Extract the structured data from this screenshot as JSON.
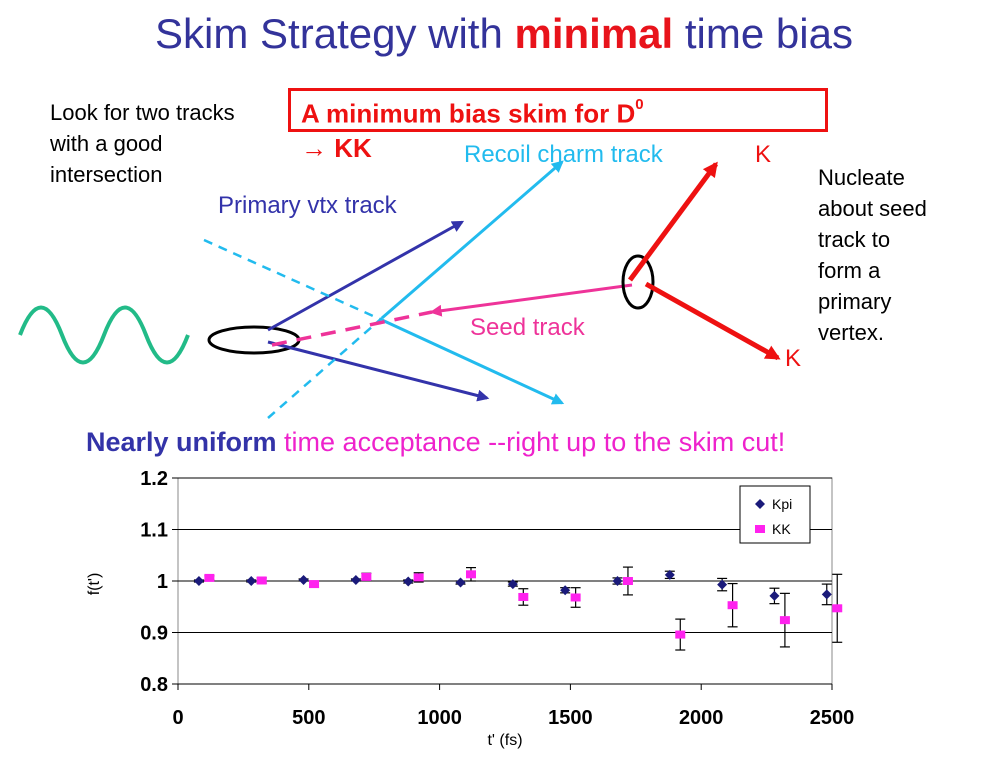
{
  "title": {
    "part1": "Skim Strategy with ",
    "highlight": "minimal",
    "part2": " time bias"
  },
  "box": {
    "line1": "A minimum bias skim for D",
    "sup": "0",
    "line2": "→ KK"
  },
  "left_note": "Look for two tracks with a good intersection",
  "right_note": "Nucleate about seed track to form a primary vertex.",
  "labels": {
    "primary": "Primary vtx track",
    "recoil": "Recoil charm track",
    "seed": "Seed track",
    "k_top": "K",
    "k_bottom": "K"
  },
  "uniform": {
    "bold": "Nearly uniform",
    "rest": " time acceptance --right up to the skim cut!"
  },
  "colors": {
    "title": "#33339a",
    "accent_red": "#ee1111",
    "magenta": "#ee22cc",
    "primary": "#3333aa",
    "recoil": "#22bbee",
    "seed": "#ee3399",
    "wave": "#22bb88",
    "kpi": "#1a1a7a",
    "kk": "#ff22ee"
  },
  "chart_data": {
    "type": "scatter",
    "xlabel": "t' (fs)",
    "ylabel": "f(t')",
    "xlim": [
      0,
      2500
    ],
    "ylim": [
      0.8,
      1.2
    ],
    "xticks": [
      "0",
      "500",
      "1000",
      "1500",
      "2000",
      "2500"
    ],
    "yticks": [
      "0.8",
      "0.9",
      "1",
      "1.1",
      "1.2"
    ],
    "grid": "horizontal",
    "legend_position": "top-right",
    "series": [
      {
        "name": "Kpi",
        "marker": "diamond",
        "x": [
          80,
          280,
          480,
          680,
          880,
          1080,
          1280,
          1480,
          1680,
          1880,
          2080,
          2280,
          2480
        ],
        "y": [
          1.0,
          1.0,
          1.002,
          1.002,
          0.999,
          0.997,
          0.994,
          0.982,
          1.0,
          1.012,
          0.993,
          0.971,
          0.974
        ],
        "err": [
          0.002,
          0.002,
          0.002,
          0.002,
          0.003,
          0.003,
          0.004,
          0.005,
          0.006,
          0.007,
          0.012,
          0.015,
          0.02
        ]
      },
      {
        "name": "KK",
        "marker": "square",
        "x": [
          120,
          320,
          520,
          720,
          920,
          1120,
          1320,
          1520,
          1720,
          1920,
          2120,
          2320,
          2520
        ],
        "y": [
          1.006,
          1.001,
          0.994,
          1.008,
          1.007,
          1.013,
          0.969,
          0.968,
          1.0,
          0.896,
          0.953,
          0.924,
          0.947
        ],
        "err": [
          0.004,
          0.005,
          0.006,
          0.007,
          0.009,
          0.013,
          0.016,
          0.019,
          0.027,
          0.03,
          0.042,
          0.052,
          0.066
        ]
      }
    ]
  }
}
